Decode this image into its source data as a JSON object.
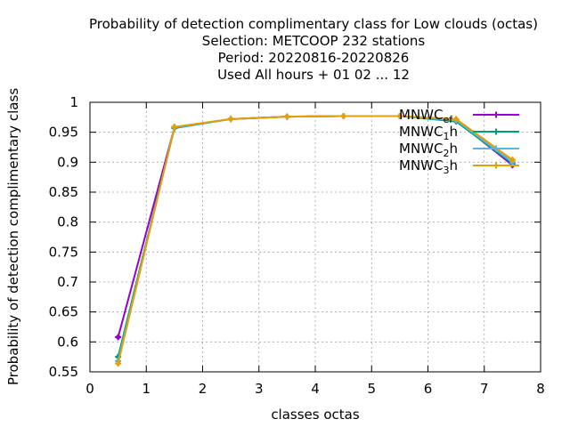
{
  "chart_data": {
    "type": "line",
    "title_lines": [
      "Probability of detection complimentary class  for Low clouds (octas)",
      "Selection: METCOOP    232 stations",
      "Period: 20220816-20220826",
      "Used  All hours + 01 02 ... 12"
    ],
    "xlabel": "classes octas",
    "ylabel": "Probability of detection complimentary class",
    "xlim": [
      0,
      8
    ],
    "ylim": [
      0.55,
      1
    ],
    "xticks": [
      0,
      1,
      2,
      3,
      4,
      5,
      6,
      7,
      8
    ],
    "yticks": [
      0.55,
      0.6,
      0.65,
      0.7,
      0.75,
      0.8,
      0.85,
      0.9,
      0.95,
      1
    ],
    "ytick_labels": [
      "0.55",
      "0.6",
      "0.65",
      "0.7",
      "0.75",
      "0.8",
      "0.85",
      "0.9",
      "0.95",
      "1"
    ],
    "grid": true,
    "legend_position": "top-right",
    "x": [
      0.5,
      1.5,
      2.5,
      3.5,
      4.5,
      5.5,
      6.5,
      7.5
    ],
    "series": [
      {
        "name": "MNWC_ef",
        "label_main": "MNWC",
        "label_sub": "ef",
        "color": "#9400d3",
        "values": [
          0.608,
          0.958,
          0.972,
          0.976,
          0.977,
          0.977,
          0.97,
          0.895
        ]
      },
      {
        "name": "MNWC_1h",
        "label_main": "MNWC",
        "label_sub": "1",
        "label_suffix": "h",
        "color": "#009e73",
        "values": [
          0.575,
          0.957,
          0.972,
          0.976,
          0.977,
          0.977,
          0.968,
          0.898
        ]
      },
      {
        "name": "MNWC_2h",
        "label_main": "MNWC",
        "label_sub": "2",
        "label_suffix": "h",
        "color": "#56b4e9",
        "values": [
          0.568,
          0.958,
          0.972,
          0.976,
          0.977,
          0.977,
          0.97,
          0.9
        ]
      },
      {
        "name": "MNWC_3h",
        "label_main": "MNWC",
        "label_sub": "3",
        "label_suffix": "h",
        "color": "#e69f00",
        "values": [
          0.564,
          0.959,
          0.972,
          0.976,
          0.977,
          0.977,
          0.972,
          0.904
        ]
      }
    ]
  }
}
